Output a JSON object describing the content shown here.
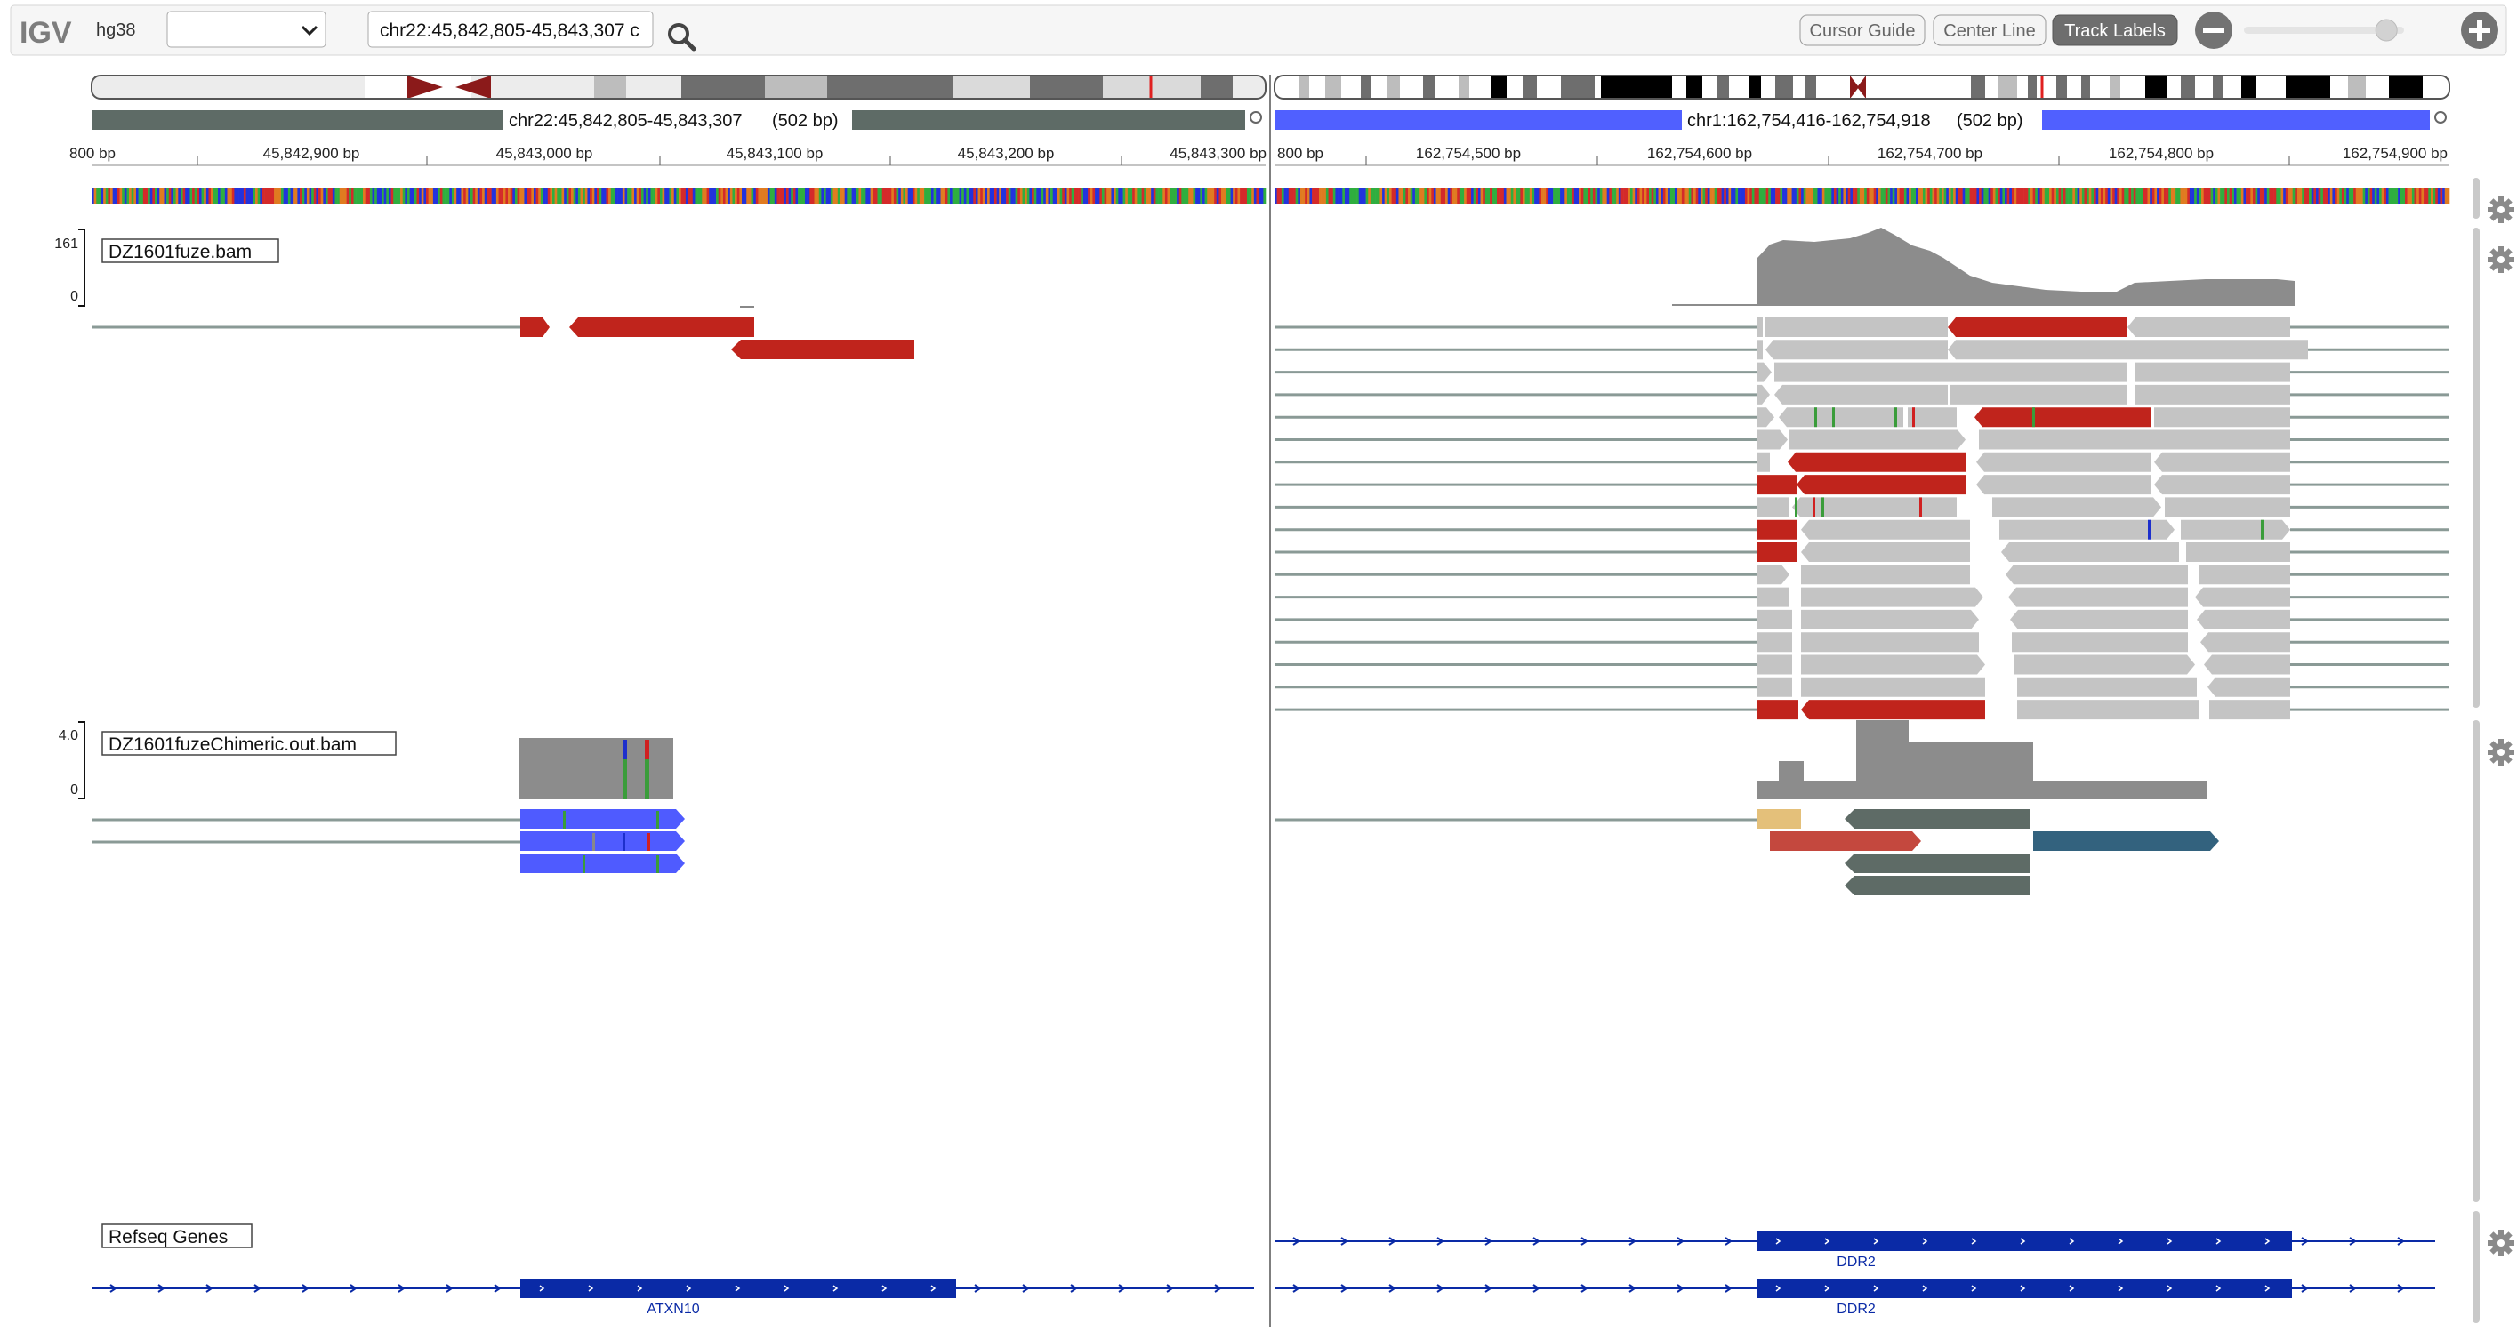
{
  "app": {
    "logo": "IGV",
    "genome": "hg38",
    "locus": "chr22:45,842,805-45,843,307 c"
  },
  "toolbar": {
    "cursor_guide": "Cursor Guide",
    "center_line": "Center Line",
    "track_labels": "Track Labels",
    "zoom_fraction": 0.89
  },
  "panels": [
    {
      "locus": "chr22:45,842,805-45,843,307",
      "width": "(502 bp)",
      "color": "#5e6b66",
      "ticks": [
        "800 bp",
        "45,842,900 bp",
        "45,843,000 bp",
        "45,843,100 bp",
        "45,843,200 bp",
        "45,843,300 bp"
      ]
    },
    {
      "locus": "chr1:162,754,416-162,754,918",
      "width": "(502 bp)",
      "color": "#5060ff",
      "ticks": [
        "800 bp",
        "162,754,500 bp",
        "162,754,600 bp",
        "162,754,700 bp",
        "162,754,800 bp",
        "162,754,900 bp"
      ]
    }
  ],
  "tracks": [
    {
      "name": "DZ1601fuze.bam",
      "scale_max": "161",
      "scale_min": "0"
    },
    {
      "name": "DZ1601fuzeChimeric.out.bam",
      "scale_max": "4.0",
      "scale_min": "0"
    },
    {
      "name": "Refseq Genes"
    }
  ],
  "genes": {
    "left": "ATXN10",
    "right_1": "DDR2",
    "right_2": "DDR2"
  },
  "colors": {
    "accent": "#5060ff",
    "read_red": "#c0241c",
    "read_gray": "#c4c4c4",
    "gene_blue": "#0a2aa6",
    "chimeric_blue": "#4f5bff",
    "cyto_red": "#8b1a1a"
  }
}
